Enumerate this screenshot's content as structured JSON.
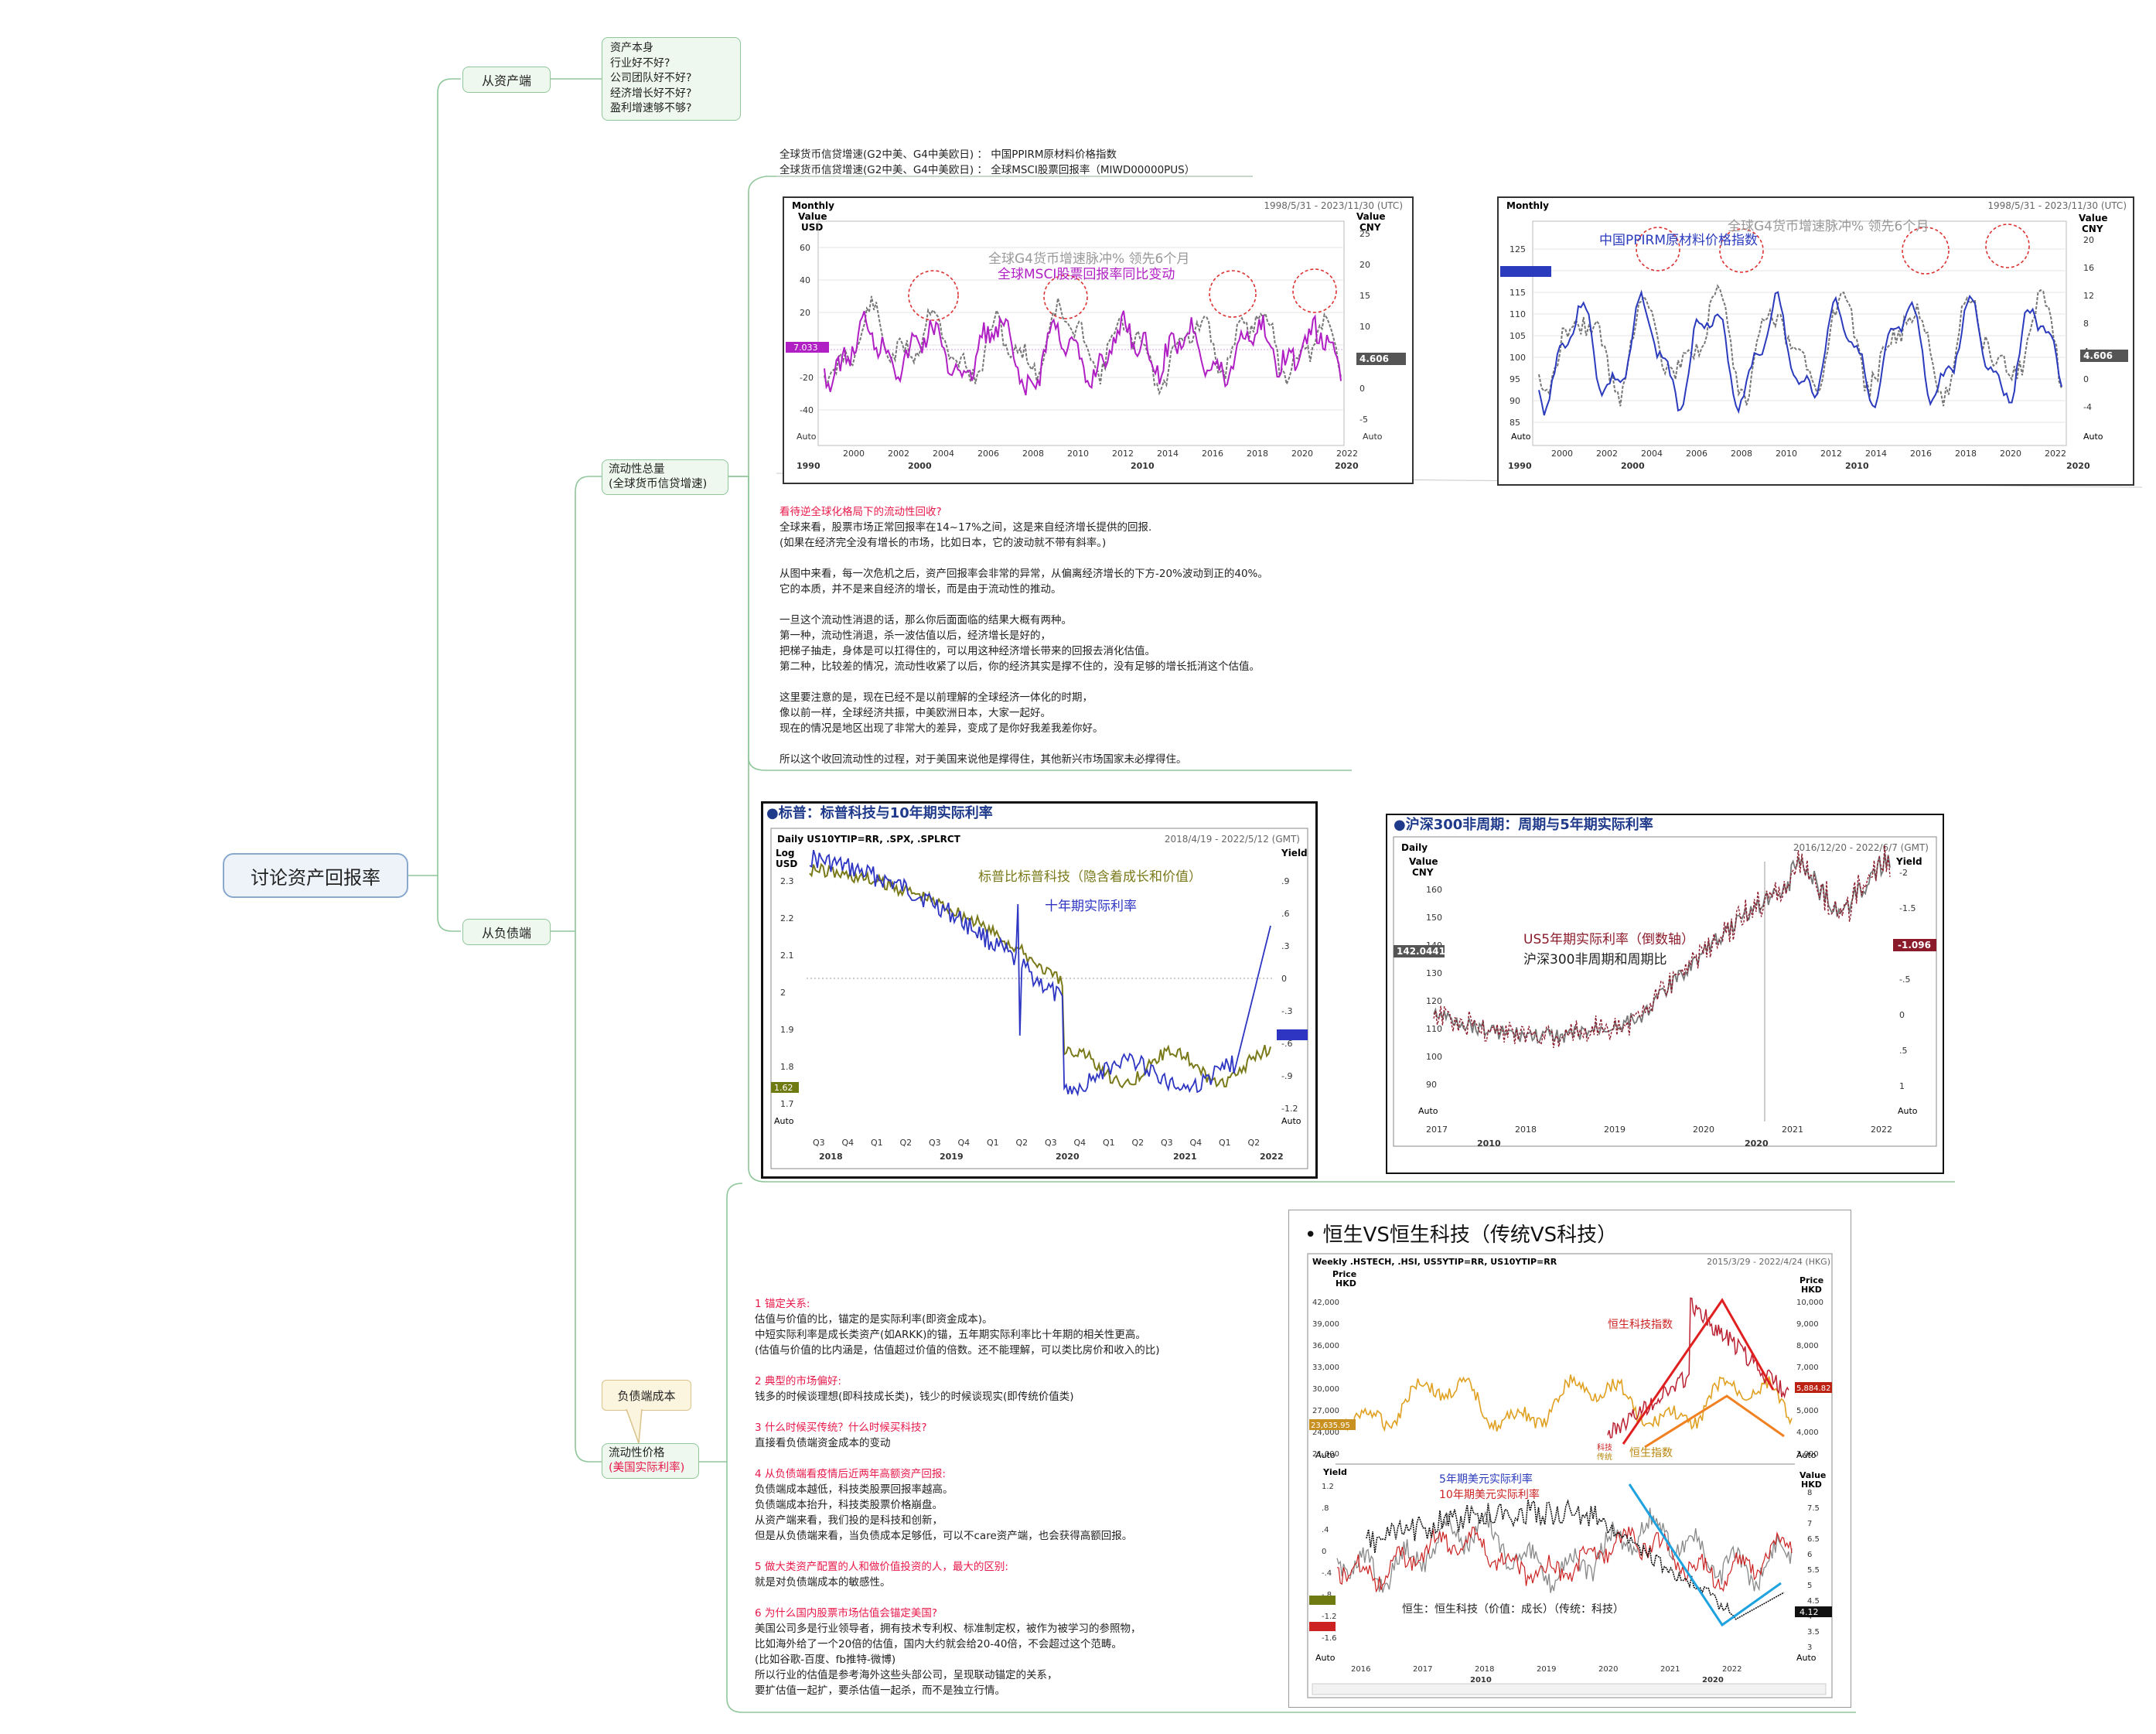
{
  "root": {
    "label": "讨论资产回报率"
  },
  "asset_side": {
    "label": "从资产端",
    "note_lines": [
      "资产本身",
      "行业好不好?",
      "公司团队好不好?",
      "经济增长好不好?",
      "盈利增速够不够?"
    ]
  },
  "liability_side": {
    "label": "从负债端",
    "liquidity_total": {
      "line1": "流动性总量",
      "line2": "(全球货币信贷增速)"
    },
    "liquidity_price": {
      "line1": "流动性价格",
      "line2": "(美国实际利率)"
    },
    "callout": "负债端成本"
  },
  "captions": {
    "line1": "全球货币信贷增速(G2中美、G4中美欧日) ： 中国PPIRM原材料价格指数",
    "line2": "全球货币信贷增速(G2中美、G4中美欧日) ： 全球MSCI股票回报率（MIWD00000PUS）"
  },
  "section1_text": {
    "heading": "看待逆全球化格局下的流动性回收?",
    "lines": [
      "全球来看，股票市场正常回报率在14~17%之间，这是来自经济增长提供的回报.",
      "(如果在经济完全没有增长的市场，比如日本，它的波动就不带有斜率。)",
      "",
      "从图中来看，每一次危机之后，资产回报率会非常的异常，从偏离经济增长的下方-20%波动到正的40%。",
      "它的本质，并不是来自经济的增长，而是由于流动性的推动。",
      "",
      "一旦这个流动性消退的话，那么你后面面临的结果大概有两种。",
      "第一种，流动性消退，杀一波估值以后，经济增长是好的，",
      "把梯子抽走，身体是可以扛得住的，可以用这种经济增长带来的回报去消化估值。",
      "第二种，比较差的情况，流动性收紧了以后，你的经济其实是撑不住的，没有足够的增长抵消这个估值。",
      "",
      "这里要注意的是，现在已经不是以前理解的全球经济一体化的时期，",
      "像以前一样，全球经济共振，中美欧洲日本，大家一起好。",
      "现在的情况是地区出现了非常大的差异，变成了是你好我差我差你好。",
      "",
      "所以这个收回流动性的过程，对于美国来说他是撑得住，其他新兴市场国家未必撑得住。"
    ]
  },
  "section2_text": {
    "blocks": [
      {
        "heading": "1 锚定关系:",
        "lines": [
          "估值与价值的比，锚定的是实际利率(即资金成本)。",
          "中短实际利率是成长类资产(如ARKK)的锚，五年期实际利率比十年期的相关性更高。",
          "(估值与价值的比内涵是，估值超过价值的倍数。还不能理解，可以类比房价和收入的比)"
        ]
      },
      {
        "heading": "2 典型的市场偏好:",
        "lines": [
          "钱多的时候谈理想(即科技成长类)，钱少的时候谈现实(即传统价值类)"
        ]
      },
      {
        "heading": "3 什么时候买传统？什么时候买科技?",
        "lines": [
          "直接看负债端资金成本的变动"
        ]
      },
      {
        "heading": "4 从负债端看疫情后近两年高额资产回报:",
        "lines": [
          "负债端成本越低，科技类股票回报率越高。",
          "负债端成本抬升，科技类股票价格崩盘。",
          "从资产端来看，我们投的是科技和创新，",
          "但是从负债端来看，当负债成本足够低，可以不care资产端，也会获得高额回报。"
        ]
      },
      {
        "heading": "5 做大类资产配置的人和做价值投资的人，最大的区别:",
        "lines": [
          "就是对负债端成本的敏感性。"
        ]
      },
      {
        "heading": "6 为什么国内股票市场估值会锚定美国?",
        "lines": [
          "美国公司多是行业领导者，拥有技术专利权、标准制定权，被作为被学习的参照物，",
          "比如海外给了一个20倍的估值，国内大约就会给20-40倍，不会超过这个范畴。",
          "(比如谷歌-百度、fb推特-微博)",
          "所以行业的估值是参考海外这些头部公司，呈现联动锚定的关系，",
          "要扩估值一起扩，要杀估值一起杀，而不是独立行情。"
        ]
      }
    ]
  },
  "charts": {
    "c1": {
      "header_left": [
        "Monthly",
        "Value",
        "USD"
      ],
      "range": "1998/5/31 - 2023/11/30 (UTC)",
      "right_header": [
        "Value",
        "CNY"
      ],
      "title_a": "全球G4货币增速脉冲% 领先6个月",
      "title_b": "全球MSCI股票回报率同比变动",
      "yticks_left": [
        "60",
        "40",
        "20",
        "0",
        "-20",
        "-40"
      ],
      "yticks_right": [
        "25",
        "20",
        "15",
        "10",
        "5",
        "0",
        "-5"
      ],
      "xticks": [
        "2000",
        "2002",
        "2004",
        "2006",
        "2008",
        "2010",
        "2012",
        "2014",
        "2016",
        "2018",
        "2020",
        "2022"
      ],
      "decades": [
        "1990",
        "2000",
        "2010",
        "2020"
      ],
      "left_tag": "7.033",
      "right_tag": "4.606",
      "auto": "Auto",
      "accent": "#b01fc4"
    },
    "c2": {
      "header_left": [
        "Monthly"
      ],
      "range": "1998/5/31 - 2023/11/30 (UTC)",
      "right_header": [
        "Value",
        "CNY"
      ],
      "title_a": "全球G4货币增速脉冲% 领先6个月",
      "title_b": "中国PPIRM原材料价格指数",
      "yticks_left": [
        "125",
        "120",
        "115",
        "110",
        "105",
        "100",
        "95",
        "90",
        "85"
      ],
      "yticks_right": [
        "20",
        "16",
        "12",
        "8",
        "4",
        "0",
        "-4"
      ],
      "xticks": [
        "2000",
        "2002",
        "2004",
        "2006",
        "2008",
        "2010",
        "2012",
        "2014",
        "2016",
        "2018",
        "2020",
        "2022"
      ],
      "decades": [
        "1990",
        "2000",
        "2010",
        "2020"
      ],
      "right_tag": "4.606",
      "auto": "Auto",
      "accent": "#2b3bbd"
    },
    "c3": {
      "headline": "●标普：标普科技与10年期实际利率",
      "header": "Daily US10YTIP=RR, .SPX, .SPLRCT",
      "range": "2018/4/19 - 2022/5/12 (GMT)",
      "left_header": [
        "Log",
        "USD"
      ],
      "right_header": [
        "Yield"
      ],
      "label_a": "标普比标普科技（隐含着成长和价值）",
      "label_b": "十年期实际利率",
      "yticks_left": [
        "2.3",
        "2.2",
        "2.1",
        "2",
        "1.9",
        "1.8",
        "1.7"
      ],
      "yticks_right": [
        ".9",
        ".6",
        ".3",
        "0",
        "-.3",
        "-.6",
        "-.9",
        "-1.2"
      ],
      "xticks": [
        "Q3",
        "Q4",
        "Q1",
        "Q2",
        "Q3",
        "Q4",
        "Q1",
        "Q2",
        "Q3",
        "Q4",
        "Q1",
        "Q2",
        "Q3",
        "Q4",
        "Q1",
        "Q2"
      ],
      "years": [
        "2018",
        "2019",
        "2020",
        "2021",
        "2022"
      ],
      "left_tag": "1.62",
      "auto": "Auto"
    },
    "c4": {
      "headline": "●沪深300非周期：周期与5年期实际利率",
      "header": "Daily",
      "range": "2016/12/20 - 2022/6/7 (GMT)",
      "left_header": [
        "Value",
        "CNY"
      ],
      "right_header": [
        "Yield"
      ],
      "label_a": "US5年期实际利率（倒数轴）",
      "label_b": "沪深300非周期和周期比",
      "yticks_left": [
        "160",
        "150",
        "140",
        "130",
        "120",
        "110",
        "100",
        "90"
      ],
      "yticks_right": [
        "-2",
        "-1.5",
        "-1",
        "-.5",
        "0",
        ".5",
        "1"
      ],
      "xticks": [
        "2017",
        "2018",
        "2019",
        "2020",
        "2021",
        "2022"
      ],
      "decades": [
        "2010",
        "2020"
      ],
      "left_tag": "142.0441",
      "right_tag": "-1.096",
      "auto": "Auto"
    },
    "c5": {
      "headline": "• 恒生VS恒生科技（传统VS科技）",
      "header": "Weekly .HSTECH, .HSI, US5YTIP=RR, US10YTIP=RR",
      "range": "2015/3/29 - 2022/4/24 (HKG)",
      "top_left_header": [
        "Price",
        "HKD"
      ],
      "top_right_header": [
        "Price",
        "HKD"
      ],
      "label_tech": "恒生科技指数",
      "label_hsi": "恒生指数",
      "label_small": [
        "科技",
        "传统"
      ],
      "yticks_top_left": [
        "42,000",
        "39,000",
        "36,000",
        "33,000",
        "30,000",
        "27,000",
        "24,000",
        "21,000"
      ],
      "yticks_top_right": [
        "10,000",
        "9,000",
        "8,000",
        "7,000",
        "6,000",
        "5,000",
        "4,000",
        "3,000"
      ],
      "left_tag_top": "23,635.95",
      "right_tag_top": "5,884.82",
      "bottom_left_header": [
        "Yield"
      ],
      "bottom_right_header": [
        "Value",
        "HKD"
      ],
      "label_5y": "5年期美元实际利率",
      "label_10y": "10年期美元实际利率",
      "bottom_caption": "恒生：恒生科技（价值：成长）（传统：科技）",
      "yticks_bottom_left": [
        "1.2",
        ".8",
        ".4",
        "0",
        "-.4",
        "-.8",
        "-1.2",
        "-1.6"
      ],
      "yticks_bottom_right": [
        "8",
        "7.5",
        "7",
        "6.5",
        "6",
        "5.5",
        "5",
        "4.5",
        "4",
        "3.5",
        "3"
      ],
      "right_tag_bottom": "4.12",
      "xticks": [
        "2016",
        "2017",
        "2018",
        "2019",
        "2020",
        "2021",
        "2022"
      ],
      "decades": [
        "2010",
        "2020"
      ],
      "auto": "Auto"
    }
  }
}
